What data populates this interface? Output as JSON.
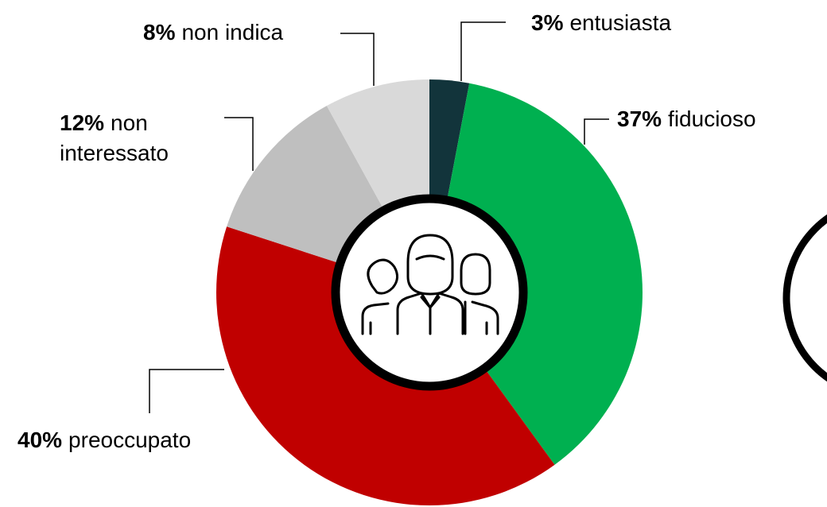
{
  "chart_data": {
    "type": "donut",
    "categories": [
      "entusiasta",
      "fiducioso",
      "preoccupato",
      "non interessato",
      "non indica"
    ],
    "values": [
      3,
      37,
      40,
      12,
      8
    ],
    "value_labels": [
      "3%",
      "37%",
      "40%",
      "12%",
      "8%"
    ],
    "colors": [
      "#12343b",
      "#00b050",
      "#c00000",
      "#bfbfbf",
      "#d9d9d9"
    ]
  }
}
